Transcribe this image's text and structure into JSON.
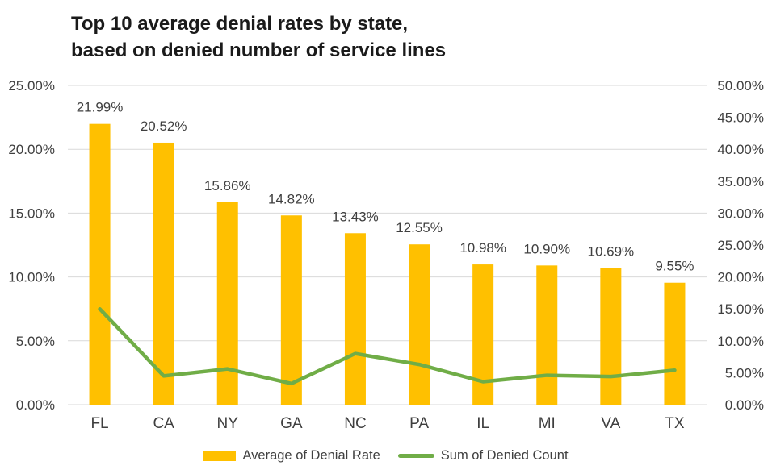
{
  "title": {
    "line1": "Top 10 average denial rates by state,",
    "line2": "based on denied number of service lines"
  },
  "legend": {
    "bar_label": "Average of Denial Rate",
    "line_label": "Sum of Denied Count"
  },
  "colors": {
    "bar": "#FFC000",
    "line": "#70AD47",
    "gridline": "#D9D9D9",
    "axis_text": "#3f3f3f",
    "title_text": "#1a1a1a"
  },
  "chart_data": {
    "type": "bar",
    "subtype": "combo-bar-line-dual-axis",
    "title": "Top 10 average denial rates by state, based on denied number of service lines",
    "categories": [
      "FL",
      "CA",
      "NY",
      "GA",
      "NC",
      "PA",
      "IL",
      "MI",
      "VA",
      "TX"
    ],
    "series": [
      {
        "name": "Average of Denial Rate",
        "type": "bar",
        "axis": "left",
        "values": [
          21.99,
          20.52,
          15.86,
          14.82,
          13.43,
          12.55,
          10.98,
          10.9,
          10.69,
          9.55
        ],
        "data_labels": [
          "21.99%",
          "20.52%",
          "15.86%",
          "14.82%",
          "13.43%",
          "12.55%",
          "10.98%",
          "10.90%",
          "10.69%",
          "9.55%"
        ]
      },
      {
        "name": "Sum of Denied Count",
        "type": "line",
        "axis": "right",
        "values": [
          15.0,
          4.5,
          5.6,
          3.3,
          8.0,
          6.3,
          3.6,
          4.6,
          4.4,
          5.4
        ]
      }
    ],
    "left_axis": {
      "min": 0,
      "max": 25,
      "tick_values": [
        25,
        20,
        15,
        10,
        5,
        0
      ],
      "tick_labels": [
        "25.00%",
        "20.00%",
        "15.00%",
        "10.00%",
        "5.00%",
        "0.00%"
      ]
    },
    "right_axis": {
      "min": 0,
      "max": 50,
      "tick_values": [
        50,
        45,
        40,
        35,
        30,
        25,
        20,
        15,
        10,
        5,
        0
      ],
      "tick_labels": [
        "50.00%",
        "45.00%",
        "40.00%",
        "35.00%",
        "30.00%",
        "25.00%",
        "20.00%",
        "15.00%",
        "10.00%",
        "5.00%",
        "0.00%"
      ]
    },
    "grid": "horizontal gridlines at left-axis ticks only",
    "legend_position": "bottom-center",
    "data_labels_shown": true,
    "line_markers": false
  }
}
